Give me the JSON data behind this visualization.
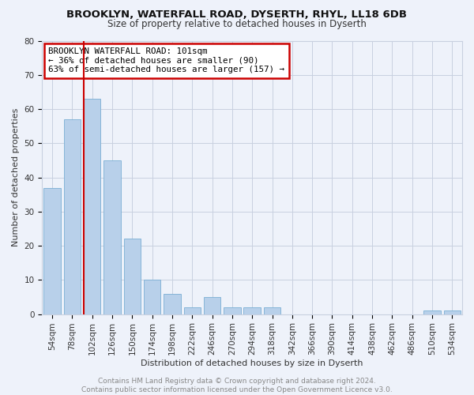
{
  "title1": "BROOKLYN, WATERFALL ROAD, DYSERTH, RHYL, LL18 6DB",
  "title2": "Size of property relative to detached houses in Dyserth",
  "xlabel": "Distribution of detached houses by size in Dyserth",
  "ylabel": "Number of detached properties",
  "bar_labels": [
    "54sqm",
    "78sqm",
    "102sqm",
    "126sqm",
    "150sqm",
    "174sqm",
    "198sqm",
    "222sqm",
    "246sqm",
    "270sqm",
    "294sqm",
    "318sqm",
    "342sqm",
    "366sqm",
    "390sqm",
    "414sqm",
    "438sqm",
    "462sqm",
    "486sqm",
    "510sqm",
    "534sqm"
  ],
  "bar_values": [
    37,
    57,
    63,
    45,
    22,
    10,
    6,
    2,
    5,
    2,
    2,
    2,
    0,
    0,
    0,
    0,
    0,
    0,
    0,
    1,
    1
  ],
  "bar_color": "#b8d0ea",
  "bar_edge_color": "#7aaed4",
  "highlight_index": 2,
  "highlight_line_color": "#cc0000",
  "annotation_text": "BROOKLYN WATERFALL ROAD: 101sqm\n← 36% of detached houses are smaller (90)\n63% of semi-detached houses are larger (157) →",
  "annotation_box_color": "#ffffff",
  "annotation_box_edge_color": "#cc0000",
  "ylim": [
    0,
    80
  ],
  "yticks": [
    0,
    10,
    20,
    30,
    40,
    50,
    60,
    70,
    80
  ],
  "footer_text": "Contains HM Land Registry data © Crown copyright and database right 2024.\nContains public sector information licensed under the Open Government Licence v3.0.",
  "background_color": "#eef2fa",
  "grid_color": "#c8d0e0",
  "title1_fontsize": 9.5,
  "title2_fontsize": 8.5,
  "ylabel_fontsize": 8.0,
  "xlabel_fontsize": 8.0,
  "tick_fontsize": 7.5,
  "footer_fontsize": 6.5,
  "annot_fontsize": 7.8
}
